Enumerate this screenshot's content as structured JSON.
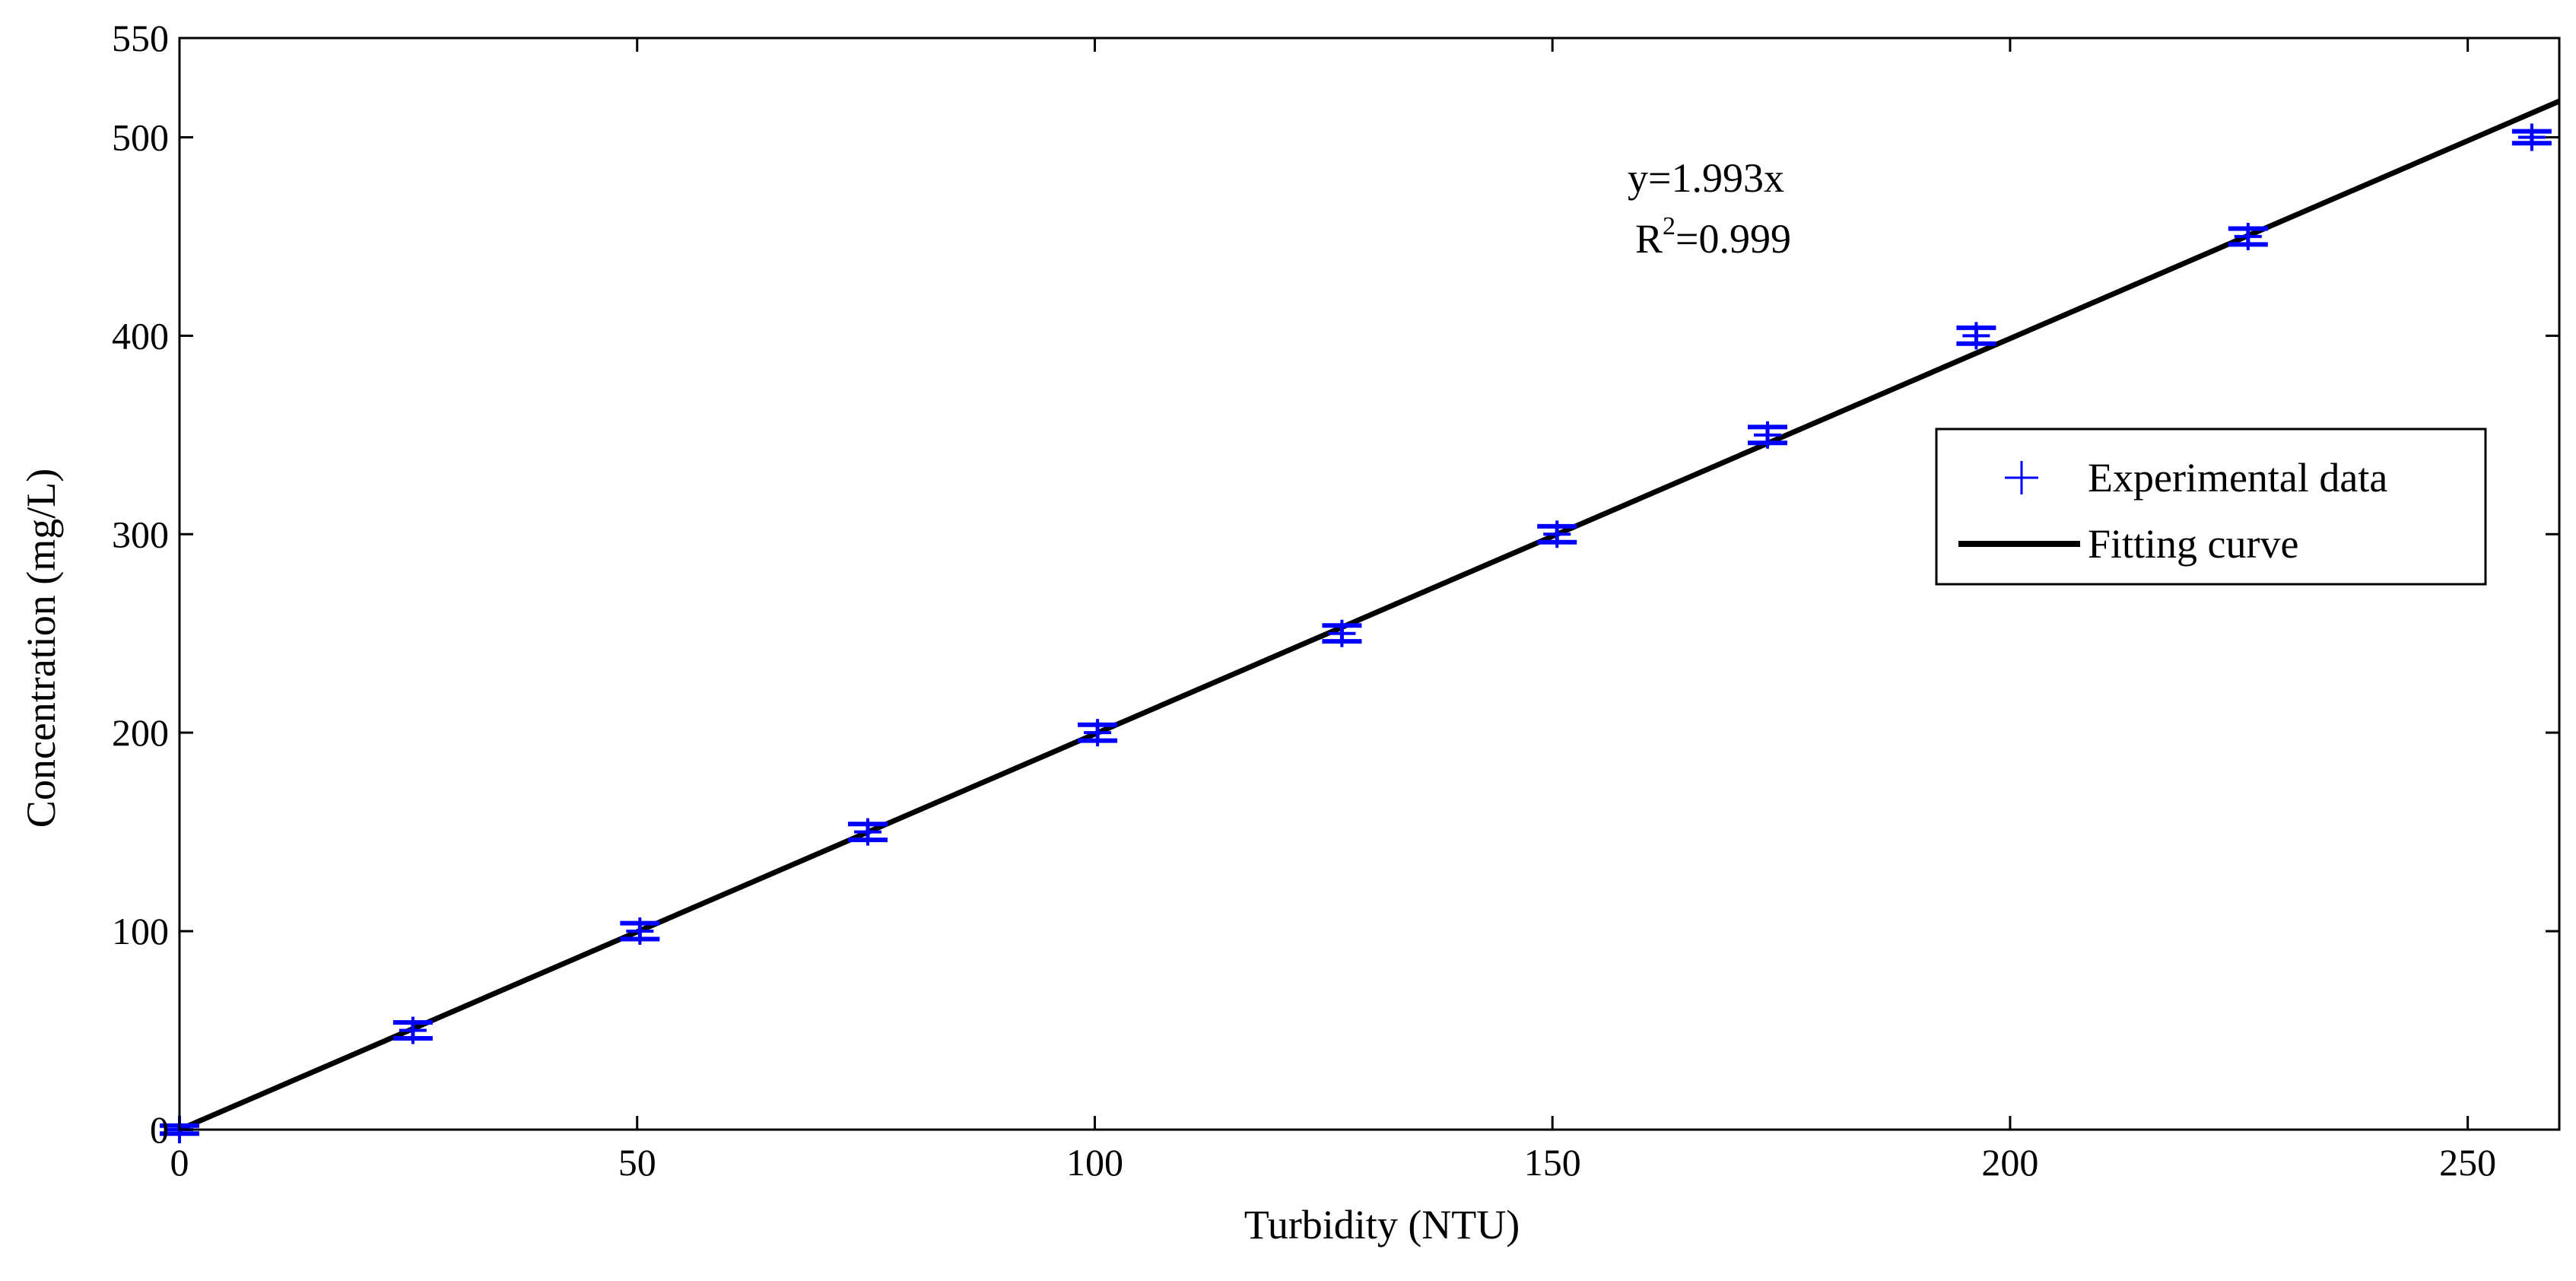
{
  "chart_data": {
    "type": "scatter",
    "title": "",
    "xlabel": "Turbidity (NTU)",
    "ylabel": "Concentration (mg/L)",
    "xlim": [
      0,
      260
    ],
    "ylim": [
      0,
      550
    ],
    "x_ticks": [
      0,
      50,
      100,
      150,
      200,
      250
    ],
    "y_ticks": [
      0,
      100,
      200,
      300,
      400,
      500,
      550
    ],
    "grid": false,
    "legend": {
      "placement": "right-middle",
      "entries": [
        {
          "label": "Experimental data",
          "marker": "plus",
          "color": "#0000ff"
        },
        {
          "label": "Fitting curve",
          "marker": "line",
          "color": "#000000"
        }
      ]
    },
    "series": [
      {
        "name": "Experimental data",
        "color": "#0000ff",
        "marker": "plus",
        "x": [
          0,
          25.5,
          50.3,
          75.2,
          100.3,
          127.0,
          150.5,
          173.5,
          196.3,
          226.0,
          257.0
        ],
        "y": [
          0,
          50,
          100,
          150,
          200,
          250,
          300,
          350,
          400,
          450,
          500
        ],
        "error": [
          2,
          4,
          4,
          4,
          4,
          4,
          4,
          4,
          4,
          4,
          3
        ]
      },
      {
        "name": "Fitting curve",
        "color": "#000000",
        "type": "line",
        "slope": 1.993,
        "x": [
          0,
          260
        ],
        "y": [
          0,
          518.18
        ]
      }
    ],
    "annotations": {
      "equation": "y=1.993x",
      "r_prefix": "R",
      "r_superscript": "2",
      "r_value": "=0.999"
    }
  }
}
